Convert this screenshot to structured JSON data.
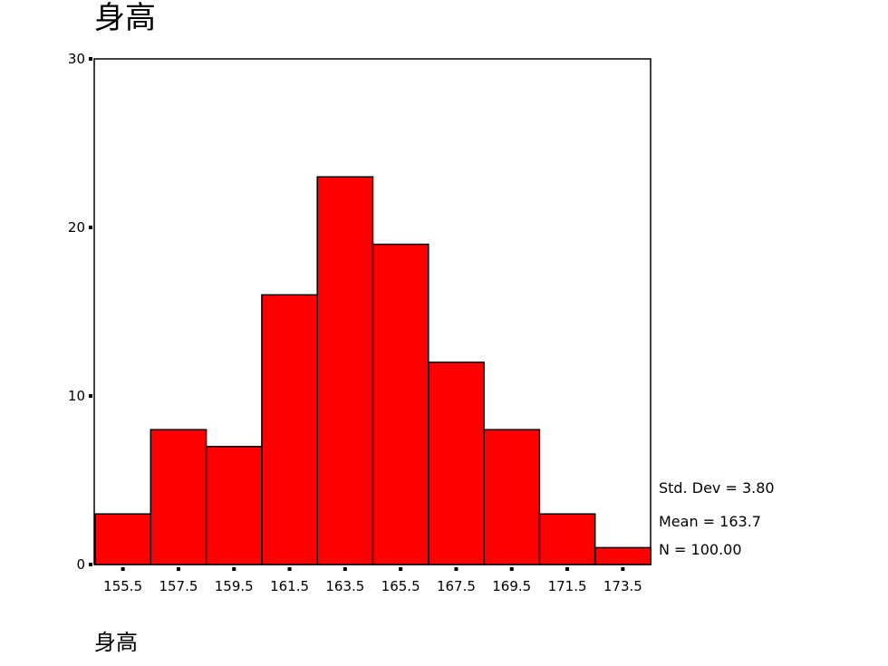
{
  "chart_data": {
    "type": "bar",
    "title": "身高",
    "xlabel": "身高",
    "ylabel": "",
    "categories": [
      "155.5",
      "157.5",
      "159.5",
      "161.5",
      "163.5",
      "165.5",
      "167.5",
      "169.5",
      "171.5",
      "173.5"
    ],
    "values": [
      3,
      8,
      7,
      16,
      23,
      19,
      12,
      8,
      3,
      1
    ],
    "ylim": [
      0,
      30
    ],
    "yticks": [
      0,
      10,
      20,
      30
    ],
    "grid": false,
    "bar_color": "#ff0000",
    "stats": [
      "Std. Dev = 3.80",
      "Mean = 163.7",
      "N = 100.00"
    ]
  }
}
